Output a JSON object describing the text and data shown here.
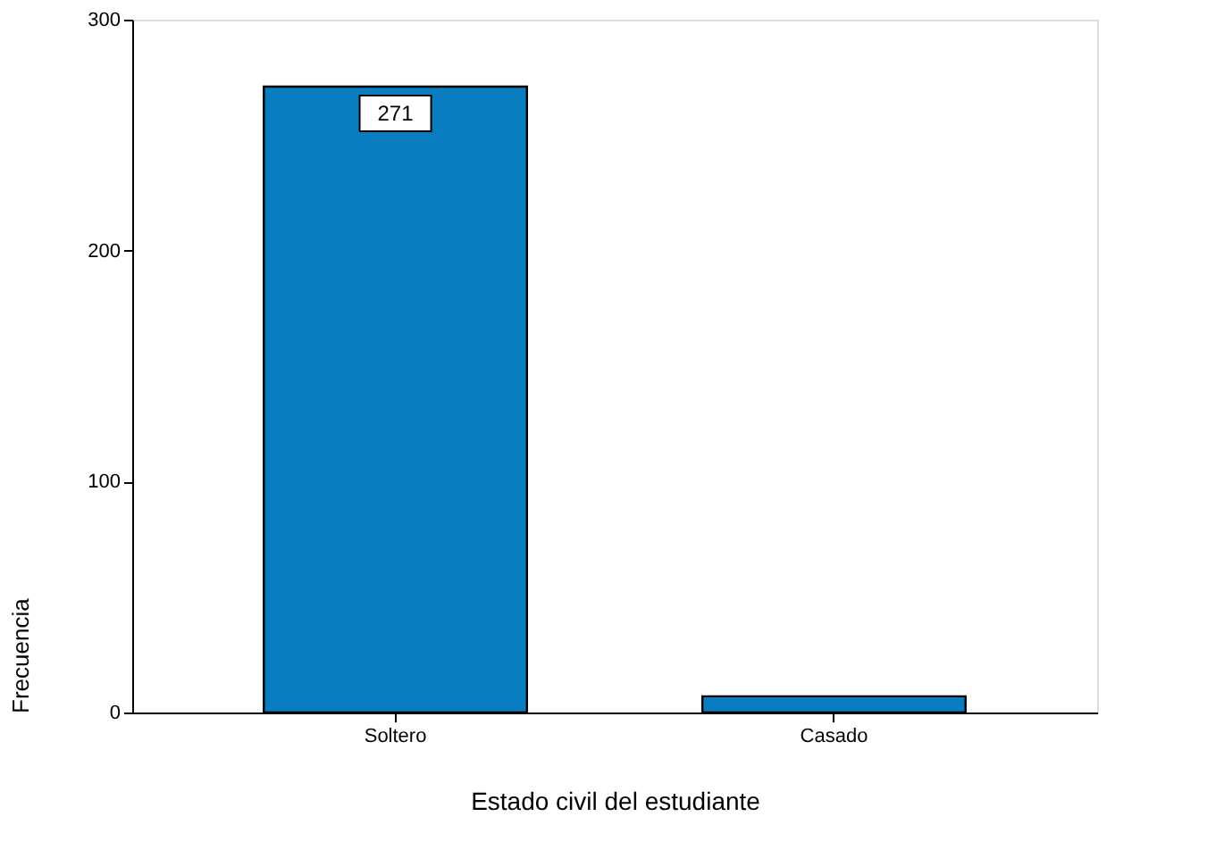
{
  "chart_data": {
    "type": "bar",
    "xlabel": "Estado civil del estudiante",
    "ylabel": "Frecuencia",
    "categories": [
      "Soltero",
      "Casado"
    ],
    "values": [
      271,
      7
    ],
    "value_labels": [
      "271",
      null
    ],
    "color": "#0a7dc0",
    "ylim": [
      0,
      300
    ],
    "yticks": [
      0,
      100,
      200,
      300
    ],
    "grid": false
  }
}
